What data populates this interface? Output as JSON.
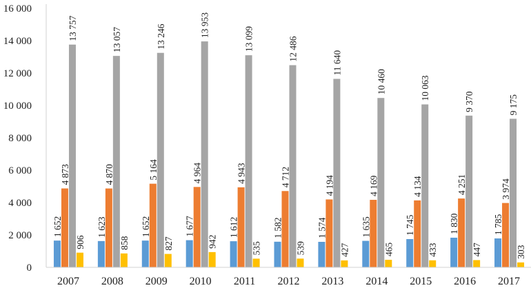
{
  "chart_data": {
    "type": "bar",
    "categories": [
      "2007",
      "2008",
      "2009",
      "2010",
      "2011",
      "2012",
      "2013",
      "2014",
      "2015",
      "2016",
      "2017"
    ],
    "series": [
      {
        "color": "#5b9bd5",
        "values": [
          1652,
          1623,
          1652,
          1677,
          1612,
          1582,
          1574,
          1635,
          1745,
          1830,
          1785
        ],
        "labels": [
          "1 652",
          "1 623",
          "1 652",
          "1 677",
          "1 612",
          "1 582",
          "1 574",
          "1 635",
          "1 745",
          "1 830",
          "1 785"
        ]
      },
      {
        "color": "#ed7d31",
        "values": [
          4873,
          4870,
          5164,
          4964,
          4943,
          4712,
          4194,
          4169,
          4134,
          4251,
          3974
        ],
        "labels": [
          "4 873",
          "4 870",
          "5 164",
          "4 964",
          "4 943",
          "4 712",
          "4 194",
          "4 169",
          "4 134",
          "4 251",
          "3 974"
        ]
      },
      {
        "color": "#a5a5a5",
        "values": [
          13757,
          13057,
          13246,
          13953,
          13099,
          12486,
          11640,
          10460,
          10063,
          9370,
          9175
        ],
        "labels": [
          "13 757",
          "13 057",
          "13 246",
          "13 953",
          "13 099",
          "12 486",
          "11 640",
          "10 460",
          "10 063",
          "9 370",
          "9 175"
        ]
      },
      {
        "color": "#ffc000",
        "values": [
          906,
          858,
          827,
          942,
          535,
          539,
          427,
          465,
          433,
          447,
          303
        ],
        "labels": [
          "906",
          "858",
          "827",
          "942",
          "535",
          "539",
          "427",
          "465",
          "433",
          "447",
          "303"
        ]
      }
    ],
    "ylim": [
      0,
      16000
    ],
    "yticks": [
      0,
      2000,
      4000,
      6000,
      8000,
      10000,
      12000,
      14000,
      16000
    ],
    "ytick_labels": [
      "0",
      "2 000",
      "4 000",
      "6 000",
      "8 000",
      "10 000",
      "12 000",
      "14 000",
      "16 000"
    ],
    "grid": false,
    "legend": "none"
  }
}
